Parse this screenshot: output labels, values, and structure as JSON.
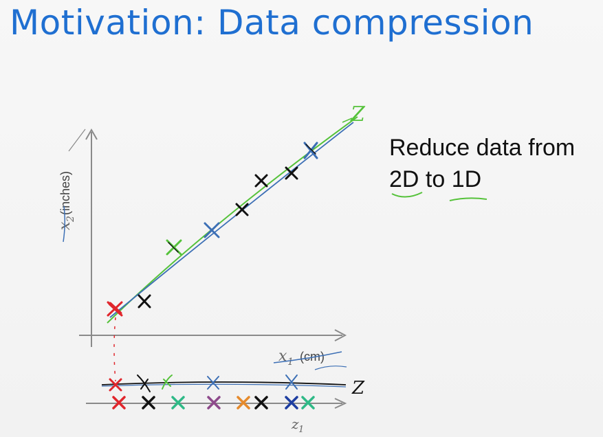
{
  "slide": {
    "title": "Motivation: Data compression",
    "note_line1": "Reduce data from",
    "note_line2": "2D to 1D"
  },
  "plot": {
    "x_axis_label": "x",
    "x_axis_subscript": "1",
    "x_axis_unit": "(cm)",
    "y_axis_label": "x",
    "y_axis_subscript": "2",
    "y_axis_unit": "(inches)",
    "line_label": "Z",
    "projection_label": "Z",
    "number_line_label": "z",
    "number_line_subscript": "1"
  },
  "colors": {
    "title": "#1f6fd1",
    "red": "#e0262c",
    "green": "#55c23a",
    "blue": "#3c6fb5",
    "black": "#111111",
    "teal": "#2fb987",
    "purple": "#8e4a8b",
    "orange": "#e58a2c",
    "navy": "#1e3ea1"
  }
}
